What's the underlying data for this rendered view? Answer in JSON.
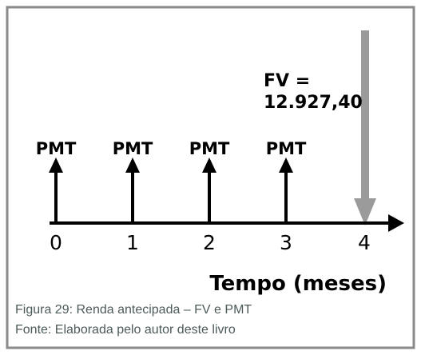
{
  "diagram": {
    "fv_label": [
      "FV =",
      "12.927,40"
    ],
    "payments": [
      "PMT",
      "PMT",
      "PMT",
      "PMT"
    ],
    "periods": [
      "0",
      "1",
      "2",
      "3",
      "4"
    ],
    "axis_label": "Tempo (meses)"
  },
  "caption": {
    "figure": "Figura 29: Renda antecipada – FV e PMT",
    "source": "Fonte: Elaborada pelo autor deste livro"
  }
}
